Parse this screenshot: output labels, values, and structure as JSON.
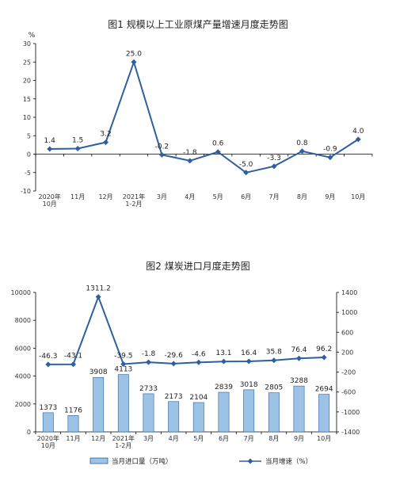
{
  "colors": {
    "line": "#2f5f9e",
    "bar": "#9cc3e6",
    "bar_stroke": "#2f5f9e",
    "axis": "#000000"
  },
  "chart_data": [
    {
      "type": "line",
      "title": "图1  规模以上工业原煤产量增速月度走势图",
      "ylabel": "%",
      "ylim": [
        -10,
        30
      ],
      "yticks": [
        "30",
        "25",
        "20",
        "15",
        "10",
        "5",
        "0",
        "-5",
        "-10"
      ],
      "categories": [
        [
          "2020年",
          "10月"
        ],
        [
          "11月"
        ],
        [
          "12月"
        ],
        [
          "2021年",
          "1-2月"
        ],
        [
          "3月"
        ],
        [
          "4月"
        ],
        [
          "5月"
        ],
        [
          "6月"
        ],
        [
          "7月"
        ],
        [
          "8月"
        ],
        [
          "9月"
        ],
        [
          "10月"
        ]
      ],
      "values": [
        1.4,
        1.5,
        3.2,
        25.0,
        -0.2,
        -1.8,
        0.6,
        -5.0,
        -3.3,
        0.8,
        -0.9,
        4.0
      ],
      "labels": [
        "1.4",
        "1.5",
        "3.2",
        "25.0",
        "-0.2",
        "-1.8",
        "0.6",
        "-5.0",
        "-3.3",
        "0.8",
        "-0.9",
        "4.0"
      ]
    },
    {
      "type": "bar",
      "title": "图2  煤炭进口月度走势图",
      "ylim_left": [
        0,
        10000
      ],
      "ylim_right": [
        -1400,
        1400
      ],
      "yticks_left": [
        "10000",
        "8000",
        "6000",
        "4000",
        "2000",
        "0"
      ],
      "yticks_right": [
        "1400",
        "1000",
        "600",
        "200",
        "-200",
        "-600",
        "-1000",
        "-1400"
      ],
      "categories": [
        [
          "2020年",
          "10月"
        ],
        [
          "11月"
        ],
        [
          "12月"
        ],
        [
          "2021年",
          "1-2月"
        ],
        [
          "3月"
        ],
        [
          "4月"
        ],
        [
          "5月"
        ],
        [
          "6月"
        ],
        [
          "7月"
        ],
        [
          "8月"
        ],
        [
          "9月"
        ],
        [
          "10月"
        ]
      ],
      "series": [
        {
          "name": "当月进口量（万吨）",
          "type": "bar",
          "axis": "left",
          "values": [
            1373,
            1176,
            3908,
            4113,
            2733,
            2173,
            2104,
            2839,
            3018,
            2805,
            3288,
            2694
          ],
          "labels": [
            "1373",
            "1176",
            "3908",
            "4113",
            "2733",
            "2173",
            "2104",
            "2839",
            "3018",
            "2805",
            "3288",
            "2694"
          ]
        },
        {
          "name": "当月增速（%）",
          "type": "line",
          "axis": "right",
          "values": [
            -46.3,
            -43.1,
            1311.2,
            -39.5,
            -1.8,
            -29.6,
            -4.6,
            13.1,
            16.4,
            35.8,
            76.4,
            96.2
          ],
          "labels": [
            "-46.3",
            "-43.1",
            "1311.2",
            "-39.5",
            "-1.8",
            "-29.6",
            "-4.6",
            "13.1",
            "16.4",
            "35.8",
            "76.4",
            "96.2"
          ]
        }
      ]
    }
  ]
}
